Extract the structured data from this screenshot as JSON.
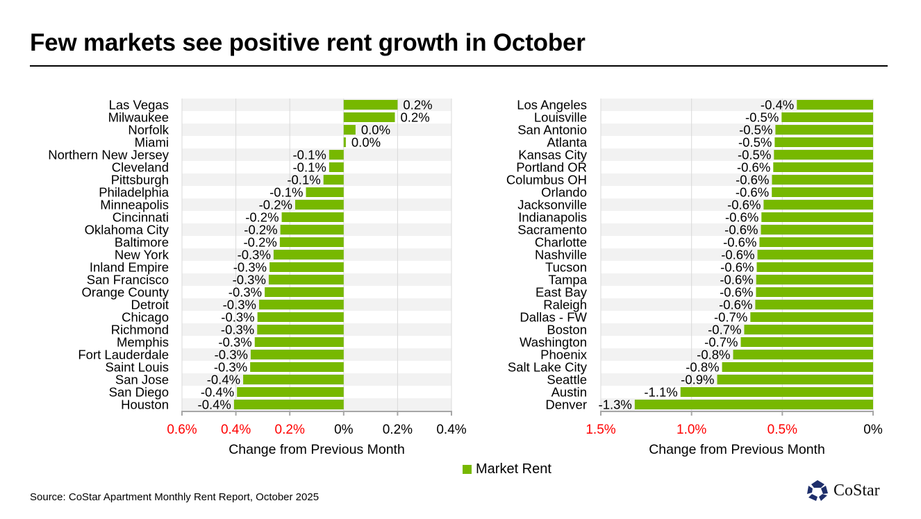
{
  "title": "Few markets see positive rent growth in October",
  "source": "Source: CoStar Apartment Monthly Rent Report, October 2025",
  "logo_text": "CoStar",
  "legend": {
    "label": "Market Rent",
    "color": "#77b800"
  },
  "colors": {
    "bar": "#77b800",
    "stripe": "#f2f2f2",
    "negative_tick": "#ff0000",
    "grid": "#d9d9d9"
  },
  "chart_data": [
    {
      "type": "bar",
      "orientation": "horizontal",
      "xlabel": "Change from Previous Month",
      "xlim": [
        -0.6,
        0.4
      ],
      "ticks": [
        -0.6,
        -0.4,
        -0.2,
        0,
        0.2,
        0.4
      ],
      "tick_labels": [
        "0.6%",
        "0.4%",
        "0.2%",
        "0%",
        "0.2%",
        "0.4%"
      ],
      "grid": true,
      "series": [
        {
          "name": "Market Rent"
        }
      ],
      "categories": [
        "Las Vegas",
        "Milwaukee",
        "Norfolk",
        "Miami",
        "Northern New Jersey",
        "Cleveland",
        "Pittsburgh",
        "Philadelphia",
        "Minneapolis",
        "Cincinnati",
        "Oklahoma City",
        "Baltimore",
        "New York",
        "Inland Empire",
        "San Francisco",
        "Orange County",
        "Detroit",
        "Chicago",
        "Richmond",
        "Memphis",
        "Fort Lauderdale",
        "Saint Louis",
        "San Jose",
        "San Diego",
        "Houston"
      ],
      "values": [
        0.2,
        0.19,
        0.044,
        0.008,
        -0.054,
        -0.054,
        -0.075,
        -0.14,
        -0.18,
        -0.23,
        -0.235,
        -0.237,
        -0.26,
        -0.275,
        -0.278,
        -0.293,
        -0.314,
        -0.32,
        -0.321,
        -0.33,
        -0.345,
        -0.347,
        -0.373,
        -0.396,
        -0.407
      ],
      "data_labels": [
        "0.2%",
        "0.2%",
        "0.0%",
        "0.0%",
        "-0.1%",
        "-0.1%",
        "-0.1%",
        "-0.1%",
        "-0.2%",
        "-0.2%",
        "-0.2%",
        "-0.2%",
        "-0.3%",
        "-0.3%",
        "-0.3%",
        "-0.3%",
        "-0.3%",
        "-0.3%",
        "-0.3%",
        "-0.3%",
        "-0.3%",
        "-0.3%",
        "-0.4%",
        "-0.4%",
        "-0.4%"
      ]
    },
    {
      "type": "bar",
      "orientation": "horizontal",
      "xlabel": "Change from Previous Month",
      "xlim": [
        -1.5,
        0
      ],
      "ticks": [
        -1.5,
        -1.0,
        -0.5,
        0
      ],
      "tick_labels": [
        "1.5%",
        "1.0%",
        "0.5%",
        "0%"
      ],
      "grid": true,
      "series": [
        {
          "name": "Market Rent"
        }
      ],
      "categories": [
        "Los Angeles",
        "Louisville",
        "San Antonio",
        "Atlanta",
        "Kansas City",
        "Portland OR",
        "Columbus OH",
        "Orlando",
        "Jacksonville",
        "Indianapolis",
        "Sacramento",
        "Charlotte",
        "Nashville",
        "Tucson",
        "Tampa",
        "East Bay",
        "Raleigh",
        "Dallas - FW",
        "Boston",
        "Washington",
        "Phoenix",
        "Salt Lake City",
        "Seattle",
        "Austin",
        "Denver"
      ],
      "values": [
        -0.42,
        -0.504,
        -0.538,
        -0.542,
        -0.546,
        -0.55,
        -0.557,
        -0.558,
        -0.603,
        -0.615,
        -0.618,
        -0.626,
        -0.637,
        -0.641,
        -0.644,
        -0.645,
        -0.649,
        -0.676,
        -0.71,
        -0.729,
        -0.771,
        -0.832,
        -0.859,
        -1.061,
        -1.313
      ],
      "data_labels": [
        "-0.4%",
        "-0.5%",
        "-0.5%",
        "-0.5%",
        "-0.5%",
        "-0.6%",
        "-0.6%",
        "-0.6%",
        "-0.6%",
        "-0.6%",
        "-0.6%",
        "-0.6%",
        "-0.6%",
        "-0.6%",
        "-0.6%",
        "-0.6%",
        "-0.6%",
        "-0.7%",
        "-0.7%",
        "-0.7%",
        "-0.8%",
        "-0.8%",
        "-0.9%",
        "-1.1%",
        "-1.3%"
      ]
    }
  ]
}
